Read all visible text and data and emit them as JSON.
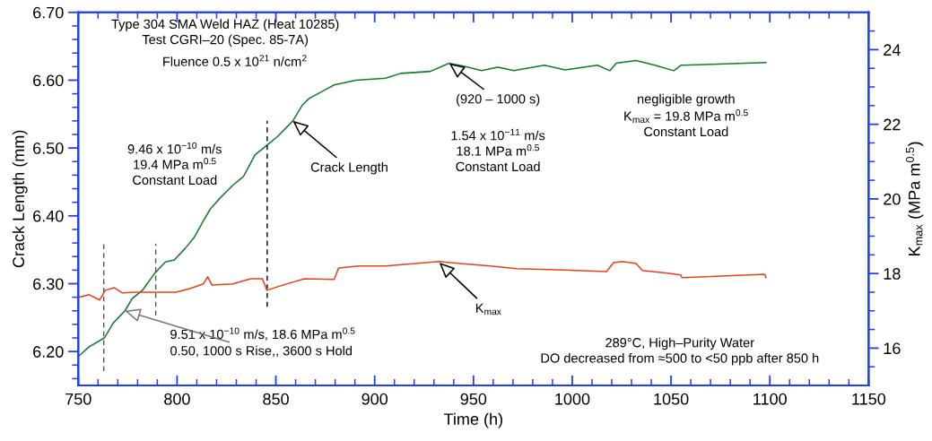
{
  "chart_data": {
    "type": "line",
    "xlabel": "Time (h)",
    "ylabel": "Crack Length (mm)",
    "y2label": "K$_{max}$ (MPa m$^{0.5}$)",
    "xlim": [
      750,
      1150
    ],
    "xticks": [
      750,
      {
        "value": 760,
        "label": null
      },
      {
        "value": 770,
        "label": null
      },
      {
        "value": 780,
        "label": null
      },
      {
        "value": 790,
        "label": null
      },
      800,
      {
        "value": 810,
        "label": null
      },
      {
        "value": 820,
        "label": null
      },
      {
        "value": 830,
        "label": null
      },
      {
        "value": 840,
        "label": null
      },
      850,
      {
        "value": 860,
        "label": null
      },
      {
        "value": 870,
        "label": null
      },
      {
        "value": 880,
        "label": null
      },
      {
        "value": 890,
        "label": null
      },
      900,
      {
        "value": 910,
        "label": null
      },
      {
        "value": 920,
        "label": null
      },
      {
        "value": 930,
        "label": null
      },
      {
        "value": 940,
        "label": null
      },
      950,
      {
        "value": 960,
        "label": null
      },
      {
        "value": 970,
        "label": null
      },
      {
        "value": 980,
        "label": null
      },
      {
        "value": 990,
        "label": null
      },
      1000,
      {
        "value": 1010,
        "label": null
      },
      {
        "value": 1020,
        "label": null
      },
      {
        "value": 1030,
        "label": null
      },
      {
        "value": 1040,
        "label": null
      },
      1050,
      {
        "value": 1060,
        "label": null
      },
      {
        "value": 1070,
        "label": null
      },
      {
        "value": 1080,
        "label": null
      },
      {
        "value": 1090,
        "label": null
      },
      1100,
      {
        "value": 1110,
        "label": null
      },
      {
        "value": 1120,
        "label": null
      },
      {
        "value": 1130,
        "label": null
      },
      {
        "value": 1140,
        "label": null
      },
      1150
    ],
    "ylim": [
      6.15,
      6.7
    ],
    "yticks": [
      {
        "value": 6.16,
        "label": null
      },
      {
        "value": 6.18,
        "label": null
      },
      {
        "value": 6.2,
        "label": "6.20"
      },
      {
        "value": 6.22,
        "label": null
      },
      {
        "value": 6.24,
        "label": null
      },
      {
        "value": 6.26,
        "label": null
      },
      {
        "value": 6.28,
        "label": null
      },
      {
        "value": 6.3,
        "label": "6.30"
      },
      {
        "value": 6.32,
        "label": null
      },
      {
        "value": 6.34,
        "label": null
      },
      {
        "value": 6.36,
        "label": null
      },
      {
        "value": 6.38,
        "label": null
      },
      {
        "value": 6.4,
        "label": "6.40"
      },
      {
        "value": 6.42,
        "label": null
      },
      {
        "value": 6.44,
        "label": null
      },
      {
        "value": 6.46,
        "label": null
      },
      {
        "value": 6.48,
        "label": null
      },
      {
        "value": 6.5,
        "label": "6.50"
      },
      {
        "value": 6.52,
        "label": null
      },
      {
        "value": 6.54,
        "label": null
      },
      {
        "value": 6.56,
        "label": null
      },
      {
        "value": 6.58,
        "label": null
      },
      {
        "value": 6.6,
        "label": "6.60"
      },
      {
        "value": 6.62,
        "label": null
      },
      {
        "value": 6.64,
        "label": null
      },
      {
        "value": 6.66,
        "label": null
      },
      {
        "value": 6.68,
        "label": null
      },
      {
        "value": 6.7,
        "label": "6.70"
      }
    ],
    "y2lim": [
      15,
      25
    ],
    "y2ticks": [
      {
        "value": 15.5,
        "label": null
      },
      16,
      {
        "value": 16.5,
        "label": null
      },
      {
        "value": 17,
        "label": null
      },
      {
        "value": 17.5,
        "label": null
      },
      18,
      {
        "value": 18.5,
        "label": null
      },
      {
        "value": 19,
        "label": null
      },
      {
        "value": 19.5,
        "label": null
      },
      20,
      {
        "value": 20.5,
        "label": null
      },
      {
        "value": 21,
        "label": null
      },
      {
        "value": 21.5,
        "label": null
      },
      22,
      {
        "value": 22.5,
        "label": null
      },
      {
        "value": 23,
        "label": null
      },
      {
        "value": 23.5,
        "label": null
      },
      24,
      {
        "value": 24.5,
        "label": null
      }
    ],
    "grid": false,
    "series": [
      {
        "axis": "y",
        "color": "#157a2c",
        "x": [
          750,
          750.9,
          755.5,
          763.2,
          767.7,
          773.6,
          777.3,
          782.7,
          788.6,
          794.1,
          798.6,
          804.1,
          808.6,
          813.2,
          816.8,
          822.3,
          828.2,
          833.6,
          839.5,
          845,
          850.9,
          858.6,
          863.6,
          866.8,
          875,
          879.5,
          890.5,
          905.5,
          913.2,
          928.2,
          937.7,
          944.5,
          954.1,
          962.3,
          970.5,
          985.9,
          996.4,
          1012.7,
          1019.1,
          1022.3,
          1032.3,
          1041.8,
          1051.4,
          1055,
          1098
        ],
        "values": [
          6.193,
          6.195,
          6.207,
          6.22,
          6.242,
          6.26,
          6.278,
          6.291,
          6.315,
          6.332,
          6.335,
          6.352,
          6.368,
          6.392,
          6.41,
          6.428,
          6.445,
          6.458,
          6.49,
          6.503,
          6.517,
          6.54,
          6.564,
          6.573,
          6.586,
          6.593,
          6.6,
          6.603,
          6.61,
          6.613,
          6.625,
          6.621,
          6.614,
          6.619,
          6.614,
          6.622,
          6.615,
          6.622,
          6.614,
          6.625,
          6.629,
          6.622,
          6.614,
          6.622,
          6.626
        ]
      },
      {
        "axis": "y2",
        "color": "#e8401c",
        "x": [
          750,
          755.5,
          760.9,
          763.6,
          768.2,
          772.3,
          778.2,
          784.1,
          790.5,
          799.5,
          806.8,
          813.2,
          815.5,
          817.7,
          828.2,
          837.3,
          843.2,
          845.5,
          852.3,
          864.5,
          879.5,
          881.8,
          891.8,
          905.5,
          920.5,
          932.7,
          943.2,
          958.6,
          971.8,
          993.2,
          1017.3,
          1020.9,
          1025.5,
          1032.3,
          1035.5,
          1048.2,
          1055,
          1055.5,
          1097.5,
          1098
        ],
        "values": [
          17.36,
          17.43,
          17.29,
          17.55,
          17.62,
          17.48,
          17.5,
          17.5,
          17.5,
          17.5,
          17.6,
          17.72,
          17.91,
          17.69,
          17.72,
          17.86,
          17.86,
          17.55,
          17.67,
          17.86,
          17.84,
          18.15,
          18.2,
          18.2,
          18.27,
          18.32,
          18.27,
          18.2,
          18.13,
          18.1,
          18.05,
          18.29,
          18.32,
          18.27,
          18.08,
          18.01,
          17.96,
          17.89,
          17.98,
          17.89
        ]
      },
      {
        "axis": "y",
        "color": "#555555",
        "line_style": "dashed",
        "x": [
          762.9,
          762.9
        ],
        "values": [
          6.171,
          6.361
        ]
      },
      {
        "axis": "y",
        "color": "#555555",
        "line_style": "dashed",
        "x": [
          789.2,
          789.2
        ],
        "values": [
          6.253,
          6.359
        ]
      },
      {
        "axis": "y",
        "color": "#000000",
        "line_style": "dashed",
        "x": [
          845.6,
          845.6
        ],
        "values": [
          6.266,
          6.54
        ]
      }
    ],
    "annotations": [
      "Type 304 SMA Weld HAZ (Heat 10285)\nTest CGRI–20 (Spec. 85-7A)",
      "Fluence 0.5 x 10$^{21}$ n/cm$^{2}$",
      "9.46 x 10$^{−10}$ m/s\n19.4 MPa m$^{0.5}$\nConstant Load",
      {
        "text": "Crack Length",
        "x": 858.6,
        "y": 6.54
      },
      {
        "text": "(920 – 1000 s)",
        "x": 937.7,
        "y": 6.625
      },
      "1.54 x 10$^{−11}$ m/s\n18.1 MPa m$^{0.5}$\nConstant Load",
      "negligible growth\nK$_{max}$ = 19.8 MPa m$^{0.5}$\nConstant Load",
      {
        "text": "K$_{max}$",
        "x": 932.7,
        "y": 6.331
      },
      "9.51 x 10$^{−10}$ m/s, 18.6 MPa m$^{0.5}$",
      {
        "text": "0.50, 1000 s Rise,, 3600 s Hold",
        "x": 773.6,
        "y": 6.26
      },
      "289°C, High–Purity Water\nDO decreased from ≈500 to <50 ppb after 850 h"
    ]
  }
}
